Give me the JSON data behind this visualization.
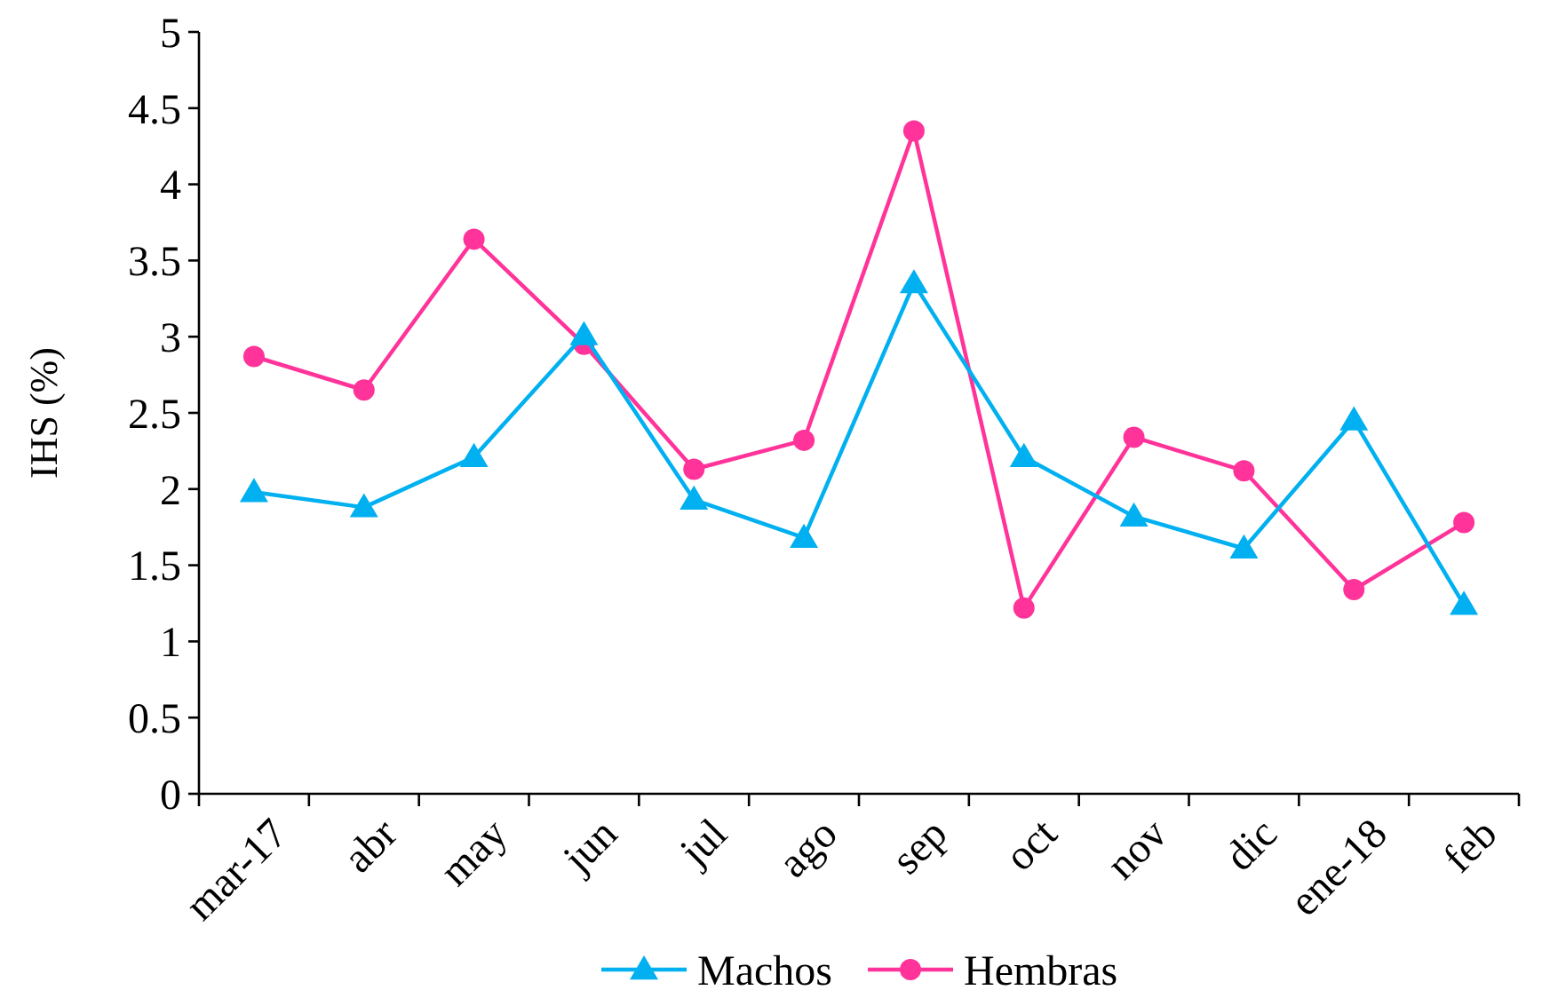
{
  "chart_data": {
    "type": "line",
    "ylabel": "IHS (%)",
    "categories": [
      "mar-17",
      "abr",
      "may",
      "jun",
      "jul",
      "ago",
      "sep",
      "oct",
      "nov",
      "dic",
      "ene-18",
      "feb"
    ],
    "ylim": [
      0,
      5
    ],
    "yticks": [
      0,
      0.5,
      1,
      1.5,
      2,
      2.5,
      3,
      3.5,
      4,
      4.5,
      5
    ],
    "grid": false,
    "legend": "bottom",
    "series": [
      {
        "name": "Machos",
        "color": "#00b0f0",
        "marker": "triangle",
        "values": [
          1.98,
          1.88,
          2.21,
          3.01,
          1.93,
          1.68,
          3.35,
          2.21,
          1.82,
          1.61,
          2.45,
          1.24
        ]
      },
      {
        "name": "Hembras",
        "color": "#ff3399",
        "marker": "circle",
        "values": [
          2.87,
          2.65,
          3.64,
          2.95,
          2.13,
          2.32,
          4.35,
          1.22,
          2.34,
          2.12,
          1.34,
          1.78
        ]
      }
    ]
  }
}
